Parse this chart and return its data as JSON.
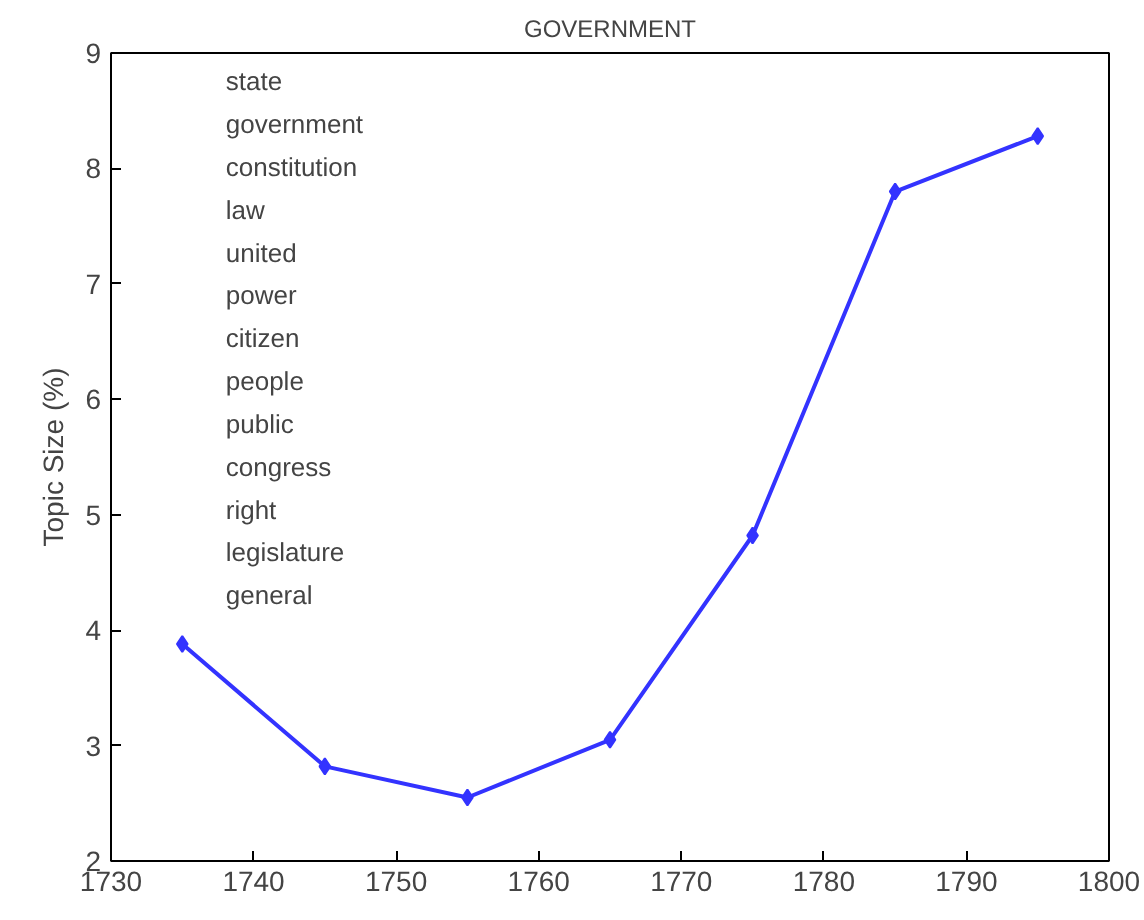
{
  "chart_data": {
    "type": "line",
    "title": "GOVERNMENT",
    "ylabel": "Topic Size (%)",
    "x": [
      1735,
      1745,
      1755,
      1765,
      1775,
      1785,
      1795
    ],
    "series": [
      {
        "color": "#3333ff",
        "values": [
          3.88,
          2.82,
          2.55,
          3.05,
          4.82,
          7.8,
          8.28
        ]
      }
    ],
    "xlim": [
      1730,
      1800
    ],
    "xticks": [
      1730,
      1740,
      1750,
      1760,
      1770,
      1780,
      1790,
      1800
    ],
    "ylim": [
      2,
      9
    ],
    "yticks": [
      2,
      3,
      4,
      5,
      6,
      7,
      8,
      9
    ],
    "marker": "diamond",
    "line_style": "solid",
    "grid": false,
    "annotations": [
      "state",
      "government",
      "constitution",
      "law",
      "united",
      "power",
      "citizen",
      "people",
      "public",
      "congress",
      "right",
      "legislature",
      "general"
    ]
  }
}
